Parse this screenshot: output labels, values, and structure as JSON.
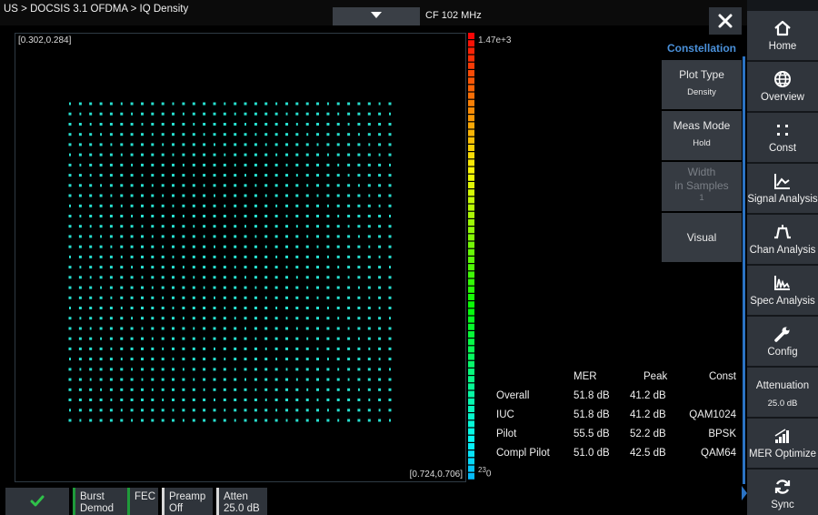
{
  "header": {
    "breadcrumb": "US > DOCSIS 3.1 OFDMA > IQ Density",
    "center_frequency": "CF 102 MHz"
  },
  "plot": {
    "corner_top_left": "[0.302,0.284]",
    "corner_bottom_right": "[0.724,0.706]",
    "scale_max": "1.47e+3",
    "scale_min": "0",
    "scale_min_exponent": "23",
    "constellation_points": 1024,
    "point_color": "#26e0d0"
  },
  "side_menu": {
    "title": "Constellation",
    "plot_type": {
      "label": "Plot Type",
      "value": "Density"
    },
    "meas_mode": {
      "label": "Meas Mode",
      "value": "Hold"
    },
    "width": {
      "label_line1": "Width",
      "label_line2": "in Samples",
      "value": "1"
    },
    "visual": {
      "label": "Visual"
    }
  },
  "results": {
    "headers": [
      "",
      "MER",
      "Peak",
      "Const"
    ],
    "rows": [
      [
        "Overall",
        "51.8 dB",
        "41.2 dB",
        ""
      ],
      [
        "IUC",
        "51.8 dB",
        "41.2 dB",
        "QAM1024"
      ],
      [
        "Pilot",
        "55.5 dB",
        "52.2 dB",
        "BPSK"
      ],
      [
        "Compl Pilot",
        "51.0 dB",
        "42.5 dB",
        "QAM64"
      ]
    ]
  },
  "status": {
    "burst": [
      "Burst",
      "Demod"
    ],
    "fec": "FEC",
    "preamp": [
      "Preamp",
      "Off"
    ],
    "atten": [
      "Atten",
      "25.0 dB"
    ]
  },
  "nav": {
    "home": "Home",
    "overview": "Overview",
    "const": "Const",
    "signal_analysis": "Signal Analysis",
    "chan_analysis": "Chan Analysis",
    "spec_analysis": "Spec Analysis",
    "config": "Config",
    "attenuation": {
      "label": "Attenuation",
      "value": "25.0 dB"
    },
    "mer_optimize": "MER Optimize",
    "sync": "Sync"
  },
  "colors": {
    "accent": "#2b73c4",
    "menu_title": "#4a90d9",
    "status_green": "#1f9a3a"
  }
}
